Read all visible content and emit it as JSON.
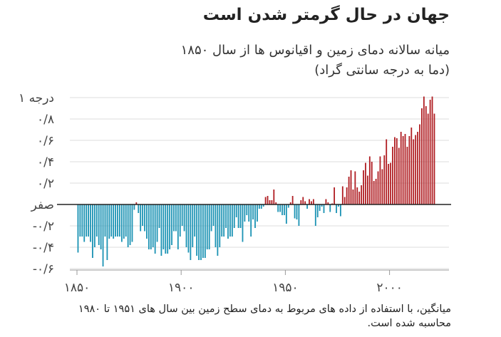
{
  "chart_data": {
    "type": "bar",
    "title": "جهان در حال گرمتر شدن است",
    "subtitle_lines": [
      "میانه سالانه دمای زمین و اقیانوس ها از سال ۱۸۵۰",
      "(دما به درجه سانتی گراد)"
    ],
    "footnote_lines": [
      "میانگین، با استفاده از داده های مربوط به دمای سطح زمین بین سال های ۱۹۵۱ تا ۱۹۸۰",
      "محاسبه شده است."
    ],
    "y_ticks": [
      {
        "value": 1,
        "label": "۱ درجه"
      },
      {
        "value": 0.8,
        "label": "۰/۸"
      },
      {
        "value": 0.6,
        "label": "۰/۶"
      },
      {
        "value": 0.4,
        "label": "۰/۴"
      },
      {
        "value": 0.2,
        "label": "۰/۲"
      },
      {
        "value": 0,
        "label": "صفر"
      },
      {
        "value": -0.2,
        "label": "-۰/۲"
      },
      {
        "value": -0.4,
        "label": "-۰/۴"
      },
      {
        "value": -0.6,
        "label": "-۰/۶"
      }
    ],
    "x_ticks": [
      {
        "value": 1850,
        "label": "۱۸۵۰"
      },
      {
        "value": 1900,
        "label": "۱۹۰۰"
      },
      {
        "value": 1950,
        "label": "۱۹۵۰"
      },
      {
        "value": 2000,
        "label": "۲۰۰۰"
      }
    ],
    "ylim": [
      -0.6,
      1.05
    ],
    "xlim": [
      1850,
      2021
    ],
    "colors": {
      "positive": "#b01e23",
      "negative": "#1c93b4",
      "baseline": "#222222",
      "axis": "#999999"
    },
    "x": [
      1850,
      1851,
      1852,
      1853,
      1854,
      1855,
      1856,
      1857,
      1858,
      1859,
      1860,
      1861,
      1862,
      1863,
      1864,
      1865,
      1866,
      1867,
      1868,
      1869,
      1870,
      1871,
      1872,
      1873,
      1874,
      1875,
      1876,
      1877,
      1878,
      1879,
      1880,
      1881,
      1882,
      1883,
      1884,
      1885,
      1886,
      1887,
      1888,
      1889,
      1890,
      1891,
      1892,
      1893,
      1894,
      1895,
      1896,
      1897,
      1898,
      1899,
      1900,
      1901,
      1902,
      1903,
      1904,
      1905,
      1906,
      1907,
      1908,
      1909,
      1910,
      1911,
      1912,
      1913,
      1914,
      1915,
      1916,
      1917,
      1918,
      1919,
      1920,
      1921,
      1922,
      1923,
      1924,
      1925,
      1926,
      1927,
      1928,
      1929,
      1930,
      1931,
      1932,
      1933,
      1934,
      1935,
      1936,
      1937,
      1938,
      1939,
      1940,
      1941,
      1942,
      1943,
      1944,
      1945,
      1946,
      1947,
      1948,
      1949,
      1950,
      1951,
      1952,
      1953,
      1954,
      1955,
      1956,
      1957,
      1958,
      1959,
      1960,
      1961,
      1962,
      1963,
      1964,
      1965,
      1966,
      1967,
      1968,
      1969,
      1970,
      1971,
      1972,
      1973,
      1974,
      1975,
      1976,
      1977,
      1978,
      1979,
      1980,
      1981,
      1982,
      1983,
      1984,
      1985,
      1986,
      1987,
      1988,
      1989,
      1990,
      1991,
      1992,
      1993,
      1994,
      1995,
      1996,
      1997,
      1998,
      1999,
      2000,
      2001,
      2002,
      2003,
      2004,
      2005,
      2006,
      2007,
      2008,
      2009,
      2010,
      2011,
      2012,
      2013,
      2014,
      2015,
      2016,
      2017,
      2018,
      2019,
      2020,
      2021
    ],
    "values": [
      -0.45,
      -0.3,
      -0.3,
      -0.35,
      -0.3,
      -0.3,
      -0.35,
      -0.5,
      -0.4,
      -0.3,
      -0.38,
      -0.42,
      -0.58,
      -0.3,
      -0.52,
      -0.32,
      -0.3,
      -0.32,
      -0.3,
      -0.3,
      -0.3,
      -0.35,
      -0.32,
      -0.3,
      -0.4,
      -0.38,
      -0.35,
      -0.05,
      0.02,
      -0.08,
      -0.25,
      -0.2,
      -0.25,
      -0.32,
      -0.42,
      -0.42,
      -0.4,
      -0.46,
      -0.35,
      -0.22,
      -0.48,
      -0.42,
      -0.46,
      -0.46,
      -0.42,
      -0.38,
      -0.25,
      -0.25,
      -0.42,
      -0.3,
      -0.2,
      -0.25,
      -0.4,
      -0.45,
      -0.52,
      -0.4,
      -0.3,
      -0.48,
      -0.52,
      -0.52,
      -0.5,
      -0.5,
      -0.42,
      -0.42,
      -0.25,
      -0.2,
      -0.4,
      -0.48,
      -0.4,
      -0.3,
      -0.3,
      -0.22,
      -0.32,
      -0.3,
      -0.3,
      -0.22,
      -0.12,
      -0.22,
      -0.22,
      -0.35,
      -0.16,
      -0.1,
      -0.16,
      -0.3,
      -0.14,
      -0.22,
      -0.16,
      -0.04,
      -0.04,
      -0.02,
      0.07,
      0.08,
      0.04,
      0.04,
      0.14,
      0.02,
      -0.07,
      -0.07,
      -0.1,
      -0.1,
      -0.18,
      -0.03,
      0.02,
      0.08,
      -0.13,
      -0.14,
      -0.2,
      0.04,
      0.07,
      0.03,
      -0.04,
      0.05,
      0.03,
      0.05,
      -0.2,
      -0.12,
      -0.06,
      -0.02,
      -0.08,
      0.05,
      0.02,
      -0.07,
      0.01,
      0.16,
      -0.08,
      -0.02,
      -0.11,
      0.17,
      0.07,
      0.16,
      0.26,
      0.32,
      0.14,
      0.31,
      0.16,
      0.12,
      0.18,
      0.32,
      0.39,
      0.27,
      0.45,
      0.4,
      0.22,
      0.24,
      0.31,
      0.45,
      0.33,
      0.46,
      0.61,
      0.38,
      0.39,
      0.54,
      0.63,
      0.62,
      0.53,
      0.68,
      0.64,
      0.66,
      0.54,
      0.64,
      0.72,
      0.61,
      0.65,
      0.68,
      0.75,
      0.9,
      1.01,
      0.92,
      0.85,
      0.98,
      1.01,
      0.85
    ]
  }
}
